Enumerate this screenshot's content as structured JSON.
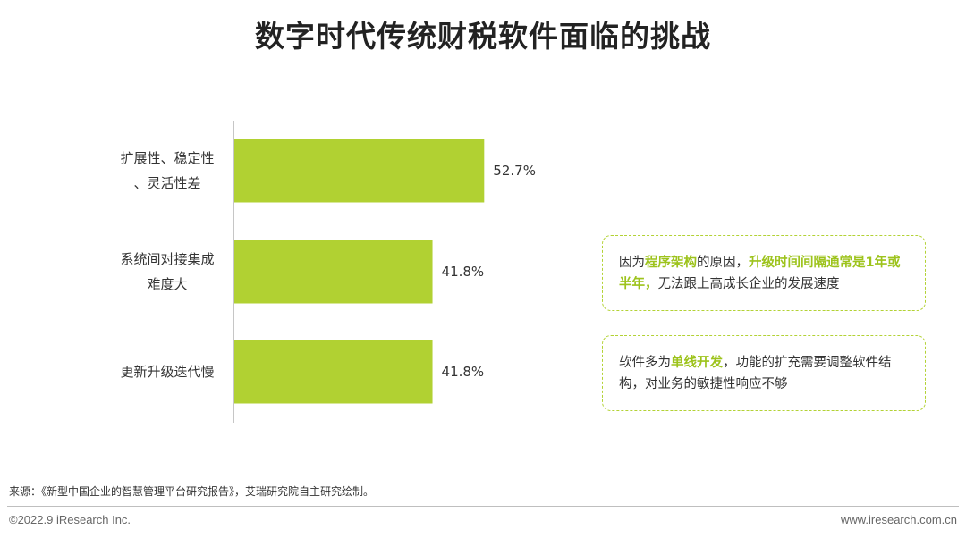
{
  "title": "数字时代传统财税软件面临的挑战",
  "colors": {
    "bar": "#b1d132",
    "highlight": "#9dc31c",
    "note_border": "#b3d235"
  },
  "chart_data": {
    "type": "bar",
    "orientation": "horizontal",
    "categories": [
      [
        "扩展性、稳定性",
        "、灵活性差"
      ],
      [
        "系统间对接集成",
        "难度大"
      ],
      [
        "更新升级迭代慢"
      ]
    ],
    "values": [
      52.7,
      41.8,
      41.8
    ],
    "value_labels": [
      "52.7%",
      "41.8%",
      "41.8%"
    ],
    "xlim": [
      0,
      100
    ],
    "grid": false
  },
  "notes": [
    {
      "parts": [
        {
          "text": "因为",
          "hl": false
        },
        {
          "text": "程序架构",
          "hl": true
        },
        {
          "text": "的原因，",
          "hl": false
        },
        {
          "text": "升级时间间隔通常是1年或半年，",
          "hl": true
        },
        {
          "text": "无法跟上高成长企业的发展速度",
          "hl": false
        }
      ]
    },
    {
      "parts": [
        {
          "text": "软件多为",
          "hl": false
        },
        {
          "text": "单线开发",
          "hl": true
        },
        {
          "text": "，功能的扩充需要调整软件结构，对业务的敏捷性响应不够",
          "hl": false
        }
      ]
    }
  ],
  "footer": {
    "source": "来源：《新型中国企业的智慧管理平台研究报告》，艾瑞研究院自主研究绘制。",
    "copyright": "©2022.9 iResearch Inc.",
    "website": "www.iresearch.com.cn"
  }
}
